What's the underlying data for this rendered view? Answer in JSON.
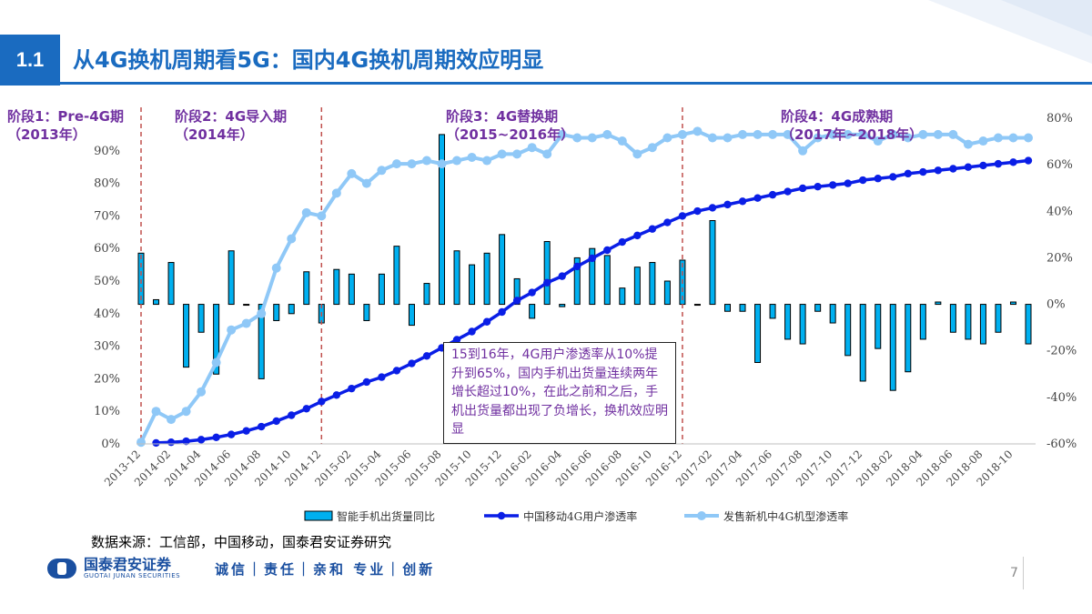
{
  "header": {
    "section_number": "1.1",
    "title": "从4G换机周期看5G：国内4G换机周期效应明显"
  },
  "stages": [
    {
      "label": "阶段1：Pre-4G期",
      "period": "（2013年）"
    },
    {
      "label": "阶段2：4G导入期",
      "period": "（2014年）"
    },
    {
      "label": "阶段3：4G替换期",
      "period": "（2015~2016年）"
    },
    {
      "label": "阶段4：4G成熟期",
      "period": "（2017年~2018年）"
    }
  ],
  "annotation": "15到16年，4G用户渗透率从10%提升到65%，国内手机出货量连续两年增长超过10%，在此之前和之后，手机出货量都出现了负增长，换机效应明显",
  "source": "数据来源：工信部，中国移动，国泰君安证券研究",
  "footer": {
    "company_name": "国泰君安证券",
    "company_en": "GUOTAI JUNAN SECURITIES",
    "slogan": "诚信｜责任｜亲和  专业｜创新",
    "page_number": "7"
  },
  "colors": {
    "accent": "#1a6bc0",
    "bar": "#00b0f0",
    "line_users": "#0a1ee6",
    "line_models": "#8fc8f7",
    "stage_text": "#7030a0",
    "divider": "#c0504d"
  },
  "chart_data": {
    "type": "bar+line",
    "categories": [
      "2013-12",
      "2014-01",
      "2014-02",
      "2014-03",
      "2014-04",
      "2014-05",
      "2014-06",
      "2014-07",
      "2014-08",
      "2014-09",
      "2014-10",
      "2014-11",
      "2014-12",
      "2015-01",
      "2015-02",
      "2015-03",
      "2015-04",
      "2015-05",
      "2015-06",
      "2015-07",
      "2015-08",
      "2015-09",
      "2015-10",
      "2015-11",
      "2015-12",
      "2016-01",
      "2016-02",
      "2016-03",
      "2016-04",
      "2016-05",
      "2016-06",
      "2016-07",
      "2016-08",
      "2016-09",
      "2016-10",
      "2016-11",
      "2016-12",
      "2017-01",
      "2017-02",
      "2017-03",
      "2017-04",
      "2017-05",
      "2017-06",
      "2017-07",
      "2017-08",
      "2017-09",
      "2017-10",
      "2017-11",
      "2017-12",
      "2018-01",
      "2018-02",
      "2018-03",
      "2018-04",
      "2018-05",
      "2018-06",
      "2018-07",
      "2018-08",
      "2018-09",
      "2018-10",
      "2018-11"
    ],
    "x_tick_labels": [
      "2013-12",
      "2014-02",
      "2014-04",
      "2014-06",
      "2014-08",
      "2014-10",
      "2014-12",
      "2015-02",
      "2015-04",
      "2015-06",
      "2015-08",
      "2015-10",
      "2015-12",
      "2016-02",
      "2016-04",
      "2016-06",
      "2016-08",
      "2016-10",
      "2016-12",
      "2017-02",
      "2017-04",
      "2017-06",
      "2017-08",
      "2017-10",
      "2017-12",
      "2018-02",
      "2018-04",
      "2018-06",
      "2018-08",
      "2018-10"
    ],
    "left_axis": {
      "ylim": [
        0,
        100
      ],
      "ticks": [
        "0%",
        "10%",
        "20%",
        "30%",
        "40%",
        "50%",
        "60%",
        "70%",
        "80%",
        "90%"
      ]
    },
    "right_axis": {
      "ylim": [
        -60,
        80
      ],
      "ticks": [
        "-60%",
        "-40%",
        "-20%",
        "0%",
        "20%",
        "40%",
        "60%",
        "80%"
      ]
    },
    "stage_dividers": [
      "2013-12",
      "2014-12",
      "2016-12"
    ],
    "series": [
      {
        "name": "智能手机出货量同比",
        "type": "bar",
        "axis": "right",
        "values": [
          22,
          2,
          18,
          -27,
          -12,
          -30,
          23,
          0,
          -32,
          -7,
          -4,
          14,
          -8,
          15,
          13,
          -7,
          13,
          25,
          -9,
          9,
          73,
          23,
          17,
          22,
          30,
          11,
          -6,
          27,
          -1,
          20,
          24,
          21,
          7,
          16,
          18,
          10,
          19,
          0,
          36,
          -3,
          -3,
          -25,
          -6,
          -15,
          -17,
          -3,
          -8,
          -22,
          -33,
          -19,
          -37,
          -29,
          -15,
          1,
          -12,
          -15,
          -17,
          -12,
          1,
          -17
        ]
      },
      {
        "name": "中国移动4G用户渗透率",
        "type": "line",
        "axis": "left",
        "values": [
          null,
          0.3,
          0.5,
          0.8,
          1.3,
          2.0,
          2.9,
          4.0,
          5.3,
          7.0,
          8.8,
          10.8,
          13.0,
          15.0,
          17.0,
          19.0,
          20.5,
          22.5,
          24.7,
          27.0,
          29.5,
          32.0,
          34.5,
          37.5,
          40.5,
          44.0,
          46.5,
          49.5,
          51.5,
          54.5,
          57.0,
          59.5,
          62.0,
          64.0,
          66.0,
          68.0,
          70.0,
          71.5,
          72.5,
          73.5,
          74.5,
          75.5,
          76.5,
          77.5,
          78.5,
          79.0,
          79.5,
          80.0,
          81.0,
          81.5,
          82.0,
          83.0,
          83.5,
          84.0,
          84.5,
          85.0,
          85.5,
          86.0,
          86.5,
          87.0
        ]
      },
      {
        "name": "发售新机中4G机型渗透率",
        "type": "line",
        "axis": "left",
        "values": [
          0.5,
          10,
          7.5,
          10,
          16,
          25,
          35,
          37,
          40,
          54,
          63,
          71,
          70,
          77,
          83,
          80,
          84,
          86,
          86,
          87,
          86,
          87,
          88,
          87,
          89,
          89,
          91,
          89,
          95,
          94,
          94,
          95,
          93,
          89,
          91,
          94,
          95,
          96,
          94,
          94,
          95,
          95,
          95,
          95,
          90,
          94,
          95,
          95,
          95,
          93,
          95,
          94,
          95,
          95,
          95,
          92,
          93,
          94,
          94,
          94
        ]
      }
    ]
  }
}
